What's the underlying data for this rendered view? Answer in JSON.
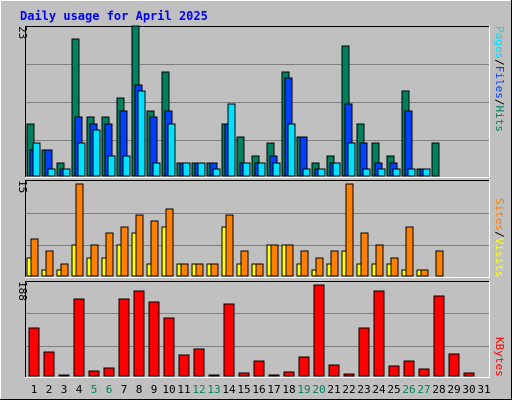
{
  "title": "Daily usage for April 2025",
  "colors": {
    "background": "#c0c0c0",
    "title": "#0000ff",
    "hits": "#00805c",
    "files": "#0040ff",
    "pages": "#00e0ff",
    "visits": "#ffff00",
    "sites": "#ff8000",
    "kbytes": "#ff0000",
    "weekend_label": "#00805c",
    "day_label": "#000000"
  },
  "legend": {
    "top": {
      "pages": "Pages",
      "files": "Files",
      "hits": "Hits",
      "sep1": "/",
      "sep2": "/"
    },
    "middle": {
      "sites": "Sites",
      "visits": "Visits",
      "sep1": "/"
    },
    "bottom": {
      "kbytes": "KBytes"
    }
  },
  "chart_data": [
    {
      "type": "bar",
      "title": "Daily usage for April 2025",
      "ylabel": "23",
      "ylim": [
        0,
        23
      ],
      "grid": true,
      "categories": [
        "1",
        "2",
        "3",
        "4",
        "5",
        "6",
        "7",
        "8",
        "9",
        "10",
        "11",
        "12",
        "13",
        "14",
        "15",
        "16",
        "17",
        "18",
        "19",
        "20",
        "21",
        "22",
        "23",
        "24",
        "25",
        "26",
        "27",
        "28",
        "29",
        "30",
        "31"
      ],
      "weekend": [
        "5",
        "6",
        "12",
        "13",
        "19",
        "20",
        "26",
        "27"
      ],
      "series": [
        {
          "name": "Hits",
          "values": [
            8,
            4,
            2,
            21,
            9,
            9,
            12,
            23,
            10,
            16,
            2,
            2,
            2,
            8,
            6,
            3,
            5,
            16,
            6,
            2,
            3,
            20,
            8,
            5,
            3,
            13,
            1,
            5,
            0,
            0,
            0
          ]
        },
        {
          "name": "Files",
          "values": [
            4,
            4,
            1,
            9,
            8,
            8,
            10,
            14,
            9,
            10,
            2,
            2,
            2,
            8,
            2,
            2,
            3,
            15,
            6,
            1,
            2,
            11,
            5,
            2,
            2,
            10,
            1,
            0,
            0,
            0,
            0
          ]
        },
        {
          "name": "Pages",
          "values": [
            5,
            1,
            1,
            5,
            7,
            3,
            3,
            13,
            2,
            8,
            2,
            2,
            1,
            11,
            2,
            2,
            2,
            8,
            1,
            1,
            2,
            5,
            1,
            1,
            1,
            1,
            1,
            0,
            0,
            0,
            0
          ]
        }
      ]
    },
    {
      "type": "bar",
      "ylabel": "15",
      "ylim": [
        0,
        15
      ],
      "grid": true,
      "categories": [
        "1",
        "2",
        "3",
        "4",
        "5",
        "6",
        "7",
        "8",
        "9",
        "10",
        "11",
        "12",
        "13",
        "14",
        "15",
        "16",
        "17",
        "18",
        "19",
        "20",
        "21",
        "22",
        "23",
        "24",
        "25",
        "26",
        "27",
        "28",
        "29",
        "30",
        "31"
      ],
      "series": [
        {
          "name": "Visits",
          "values": [
            3,
            1,
            1,
            5,
            3,
            3,
            5,
            7,
            2,
            8,
            2,
            2,
            2,
            8,
            2,
            2,
            5,
            5,
            2,
            1,
            2,
            4,
            2,
            2,
            2,
            1,
            1,
            0,
            0,
            0,
            0
          ]
        },
        {
          "name": "Sites",
          "values": [
            6,
            4,
            2,
            15,
            5,
            7,
            8,
            10,
            9,
            11,
            2,
            2,
            2,
            10,
            4,
            2,
            5,
            5,
            4,
            3,
            4,
            15,
            7,
            5,
            3,
            8,
            1,
            4,
            0,
            0,
            0
          ]
        }
      ]
    },
    {
      "type": "bar",
      "ylabel": "188",
      "ylim": [
        0,
        188
      ],
      "grid": true,
      "categories": [
        "1",
        "2",
        "3",
        "4",
        "5",
        "6",
        "7",
        "8",
        "9",
        "10",
        "11",
        "12",
        "13",
        "14",
        "15",
        "16",
        "17",
        "18",
        "19",
        "20",
        "21",
        "22",
        "23",
        "24",
        "25",
        "26",
        "27",
        "28",
        "29",
        "30",
        "31"
      ],
      "series": [
        {
          "name": "KBytes",
          "values": [
            99,
            50,
            3,
            160,
            10,
            16,
            160,
            175,
            152,
            120,
            43,
            55,
            3,
            149,
            6,
            30,
            3,
            8,
            40,
            188,
            22,
            5,
            100,
            175,
            20,
            31,
            15,
            166,
            45,
            7,
            0
          ]
        }
      ]
    }
  ]
}
